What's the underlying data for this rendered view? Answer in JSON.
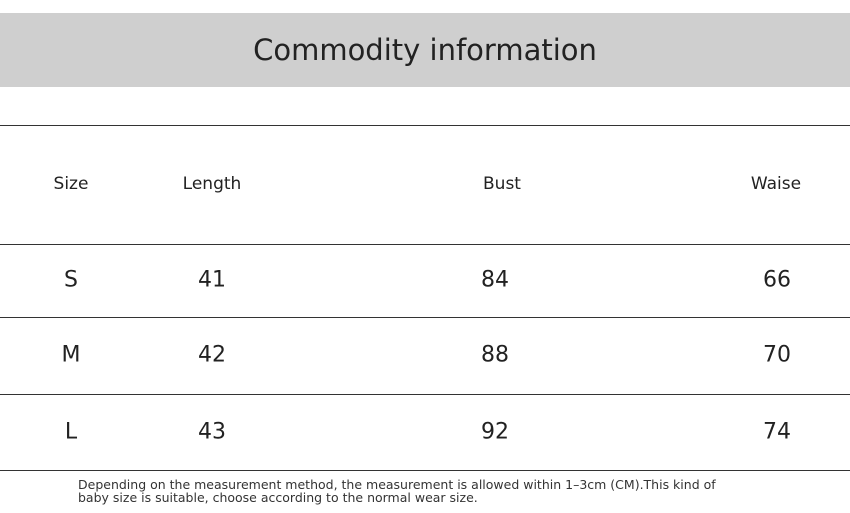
{
  "header": {
    "title": "Commodity information"
  },
  "table": {
    "columns": [
      "Size",
      "Length",
      "Bust",
      "Waise"
    ],
    "rows": [
      [
        "S",
        "41",
        "84",
        "66"
      ],
      [
        "M",
        "42",
        "88",
        "70"
      ],
      [
        "L",
        "43",
        "92",
        "74"
      ]
    ]
  },
  "note": "Depending on the measurement method, the measurement is allowed within 1–3cm (CM).This kind of baby size is suitable, choose according to the normal wear size."
}
